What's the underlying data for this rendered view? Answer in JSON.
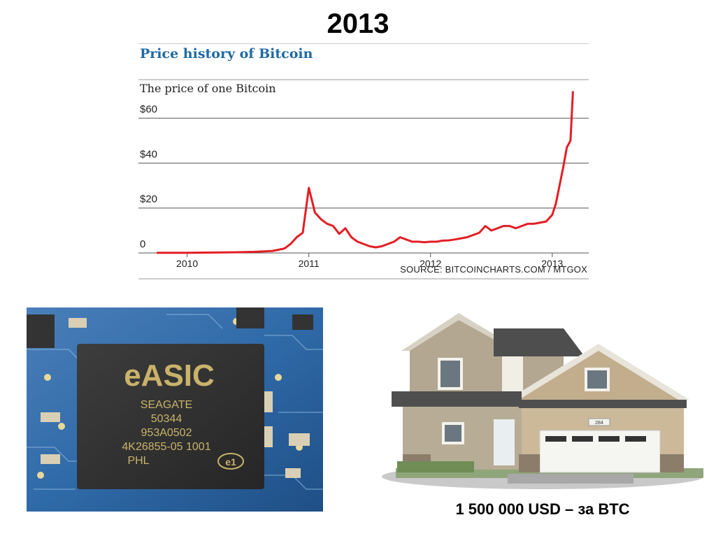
{
  "slide": {
    "title": "2013",
    "house_caption": "1 500 000 USD – за BTC"
  },
  "chip_photo": {
    "logo_text": "eASIC",
    "markings": [
      "SEAGATE",
      "50344",
      "953A0502",
      "4K26855-05 1001",
      "PHL"
    ],
    "badge": "e1"
  },
  "house_photo": {
    "address_plate": "284"
  },
  "chart_data": {
    "type": "line",
    "title": "Price history of Bitcoin",
    "subtitle": "The price of one Bitcoin",
    "source": "SOURCE: BITCOINCHARTS.COM / MTGOX",
    "xlabel": "",
    "ylabel": "",
    "y_ticks": [
      "$60",
      "$40",
      "$20",
      "0"
    ],
    "y_tick_values": [
      60,
      40,
      20,
      0
    ],
    "x_ticks": [
      "2010",
      "2011",
      "2012",
      "2013"
    ],
    "x_tick_values": [
      2010.0,
      2011.0,
      2012.0,
      2013.0
    ],
    "xlim": [
      2009.6,
      2013.3
    ],
    "ylim": [
      0,
      70
    ],
    "grid": true,
    "line_color": "#e31e24",
    "series": [
      {
        "x": [
          2009.75,
          2010.0,
          2010.2,
          2010.4,
          2010.55,
          2010.7,
          2010.8,
          2010.85,
          2010.9,
          2010.95,
          2011.0,
          2011.05,
          2011.1,
          2011.15,
          2011.2,
          2011.25,
          2011.3,
          2011.35,
          2011.4,
          2011.45,
          2011.5,
          2011.55,
          2011.6,
          2011.65,
          2011.7,
          2011.75,
          2011.8,
          2011.85,
          2011.9,
          2011.95,
          2012.0,
          2012.05,
          2012.1,
          2012.15,
          2012.2,
          2012.25,
          2012.3,
          2012.35,
          2012.4,
          2012.45,
          2012.5,
          2012.55,
          2012.6,
          2012.65,
          2012.7,
          2012.75,
          2012.8,
          2012.85,
          2012.9,
          2012.95,
          2013.0,
          2013.03,
          2013.06,
          2013.09,
          2013.12,
          2013.15,
          2013.17
        ],
        "y": [
          0.05,
          0.1,
          0.2,
          0.3,
          0.5,
          0.9,
          2.0,
          4.0,
          7.0,
          9.0,
          29.0,
          18.0,
          15.0,
          13.0,
          12.0,
          8.5,
          11.0,
          7.0,
          5.0,
          4.0,
          3.0,
          2.5,
          3.0,
          4.0,
          5.0,
          7.0,
          6.0,
          5.0,
          5.0,
          4.8,
          5.0,
          5.0,
          5.5,
          5.6,
          6.0,
          6.5,
          7.0,
          8.0,
          9.0,
          12.0,
          10.0,
          11.0,
          12.0,
          12.0,
          11.0,
          12.0,
          13.0,
          13.0,
          13.5,
          14.0,
          17.0,
          22.0,
          30.0,
          38.0,
          47.0,
          50.0,
          72.0
        ]
      }
    ]
  }
}
